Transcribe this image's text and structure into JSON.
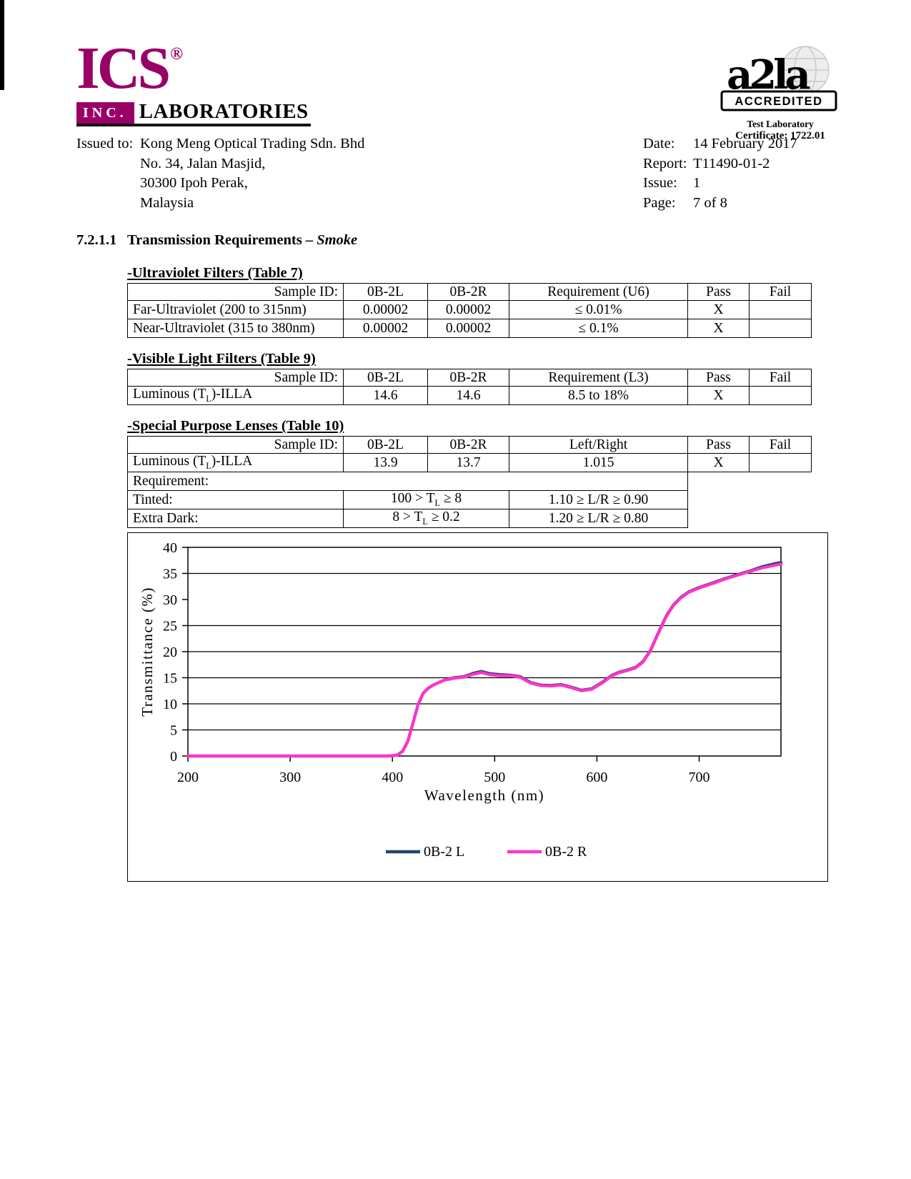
{
  "logo": {
    "brand": "ICS",
    "reg": "®",
    "inc": "INC.",
    "labs": "LABORATORIES",
    "color": "#990066"
  },
  "accreditation": {
    "mark": "a2la",
    "accredited": "ACCREDITED",
    "line1": "Test Laboratory",
    "line2": "Certificate: 1722.01"
  },
  "issued": {
    "label": "Issued to:",
    "lines": [
      "Kong Meng Optical Trading Sdn. Bhd",
      "No. 34, Jalan Masjid,",
      "30300 Ipoh Perak,",
      "Malaysia"
    ]
  },
  "meta": {
    "rows": [
      {
        "label": "Date:",
        "value": "14 February 2017"
      },
      {
        "label": "Report:",
        "value": "T11490-01-2"
      },
      {
        "label": "Issue:",
        "value": "1"
      },
      {
        "label": "Page:",
        "value": "7 of 8"
      }
    ]
  },
  "section": {
    "number": "7.2.1.1",
    "title": "Transmission Requirements – ",
    "emph": "Smoke"
  },
  "tables": {
    "uv": {
      "title": "-Ultraviolet Filters (Table 7)",
      "headers": [
        "Sample ID:",
        "0B-2L",
        "0B-2R",
        "Requirement (U6)",
        "Pass",
        "Fail"
      ],
      "rows": [
        {
          "label": "Far-Ultraviolet  (200 to 315nm)",
          "l": "0.00002",
          "r": "0.00002",
          "req": "≤ 0.01%",
          "pass": "X",
          "fail": ""
        },
        {
          "label": "Near-Ultraviolet (315 to 380nm)",
          "l": "0.00002",
          "r": "0.00002",
          "req": "≤ 0.1%",
          "pass": "X",
          "fail": ""
        }
      ]
    },
    "visible": {
      "title": "-Visible Light Filters (Table 9)",
      "headers": [
        "Sample ID:",
        "0B-2L",
        "0B-2R",
        "Requirement (L3)",
        "Pass",
        "Fail"
      ],
      "row": {
        "label_pre": "Luminous (T",
        "label_sub": "L",
        "label_post": ")-ILLA",
        "l": "14.6",
        "r": "14.6",
        "req": "8.5 to 18%",
        "pass": "X",
        "fail": ""
      }
    },
    "special": {
      "title": "-Special Purpose Lenses (Table 10)",
      "headers": [
        "Sample ID:",
        "0B-2L",
        "0B-2R",
        "Left/Right",
        "Pass",
        "Fail"
      ],
      "row": {
        "label_pre": "Luminous (T",
        "label_sub": "L",
        "label_post": ")-ILLA",
        "l": "13.9",
        "r": "13.7",
        "req": "1.015",
        "pass": "X",
        "fail": ""
      },
      "requirement_label": "Requirement:",
      "tinted": {
        "label": "Tinted:",
        "t_pre": "100 > T",
        "t_sub": "L",
        "t_post": " ≥ 8",
        "ratio": "1.10 ≥ L/R ≥ 0.90"
      },
      "extra": {
        "label": "Extra Dark:",
        "t_pre": "8 > T",
        "t_sub": "L",
        "t_post": " ≥ 0.2",
        "ratio": "1.20 ≥ L/R ≥ 0.80"
      }
    }
  },
  "chart_data": {
    "type": "line",
    "title": "",
    "xlabel": "Wavelength (nm)",
    "ylabel": "Transmittance (%)",
    "xlim": [
      200,
      780
    ],
    "ylim": [
      0,
      40
    ],
    "x_ticks": [
      200,
      300,
      400,
      500,
      600,
      700
    ],
    "y_ticks": [
      0,
      5,
      10,
      15,
      20,
      25,
      30,
      35,
      40
    ],
    "gridlines_y": [
      5,
      10,
      15,
      20,
      25,
      35
    ],
    "grid": true,
    "legend_position": "bottom",
    "series": [
      {
        "name": "0B-2 L",
        "color": "#23456E",
        "x": [
          200,
          250,
          300,
          350,
          380,
          395,
          400,
          405,
          410,
          415,
          420,
          425,
          430,
          435,
          440,
          450,
          460,
          470,
          480,
          487,
          495,
          505,
          515,
          525,
          535,
          545,
          555,
          565,
          575,
          585,
          595,
          605,
          615,
          622,
          630,
          638,
          645,
          652,
          660,
          668,
          675,
          682,
          690,
          700,
          712,
          725,
          738,
          750,
          762,
          775,
          780
        ],
        "y": [
          0,
          0,
          0,
          0,
          0,
          0,
          0.05,
          0.2,
          0.9,
          2.8,
          6.2,
          9.8,
          12.0,
          13.0,
          13.6,
          14.5,
          15.0,
          15.2,
          15.9,
          16.2,
          15.8,
          15.6,
          15.5,
          15.2,
          14.1,
          13.6,
          13.5,
          13.7,
          13.2,
          12.6,
          12.9,
          14.1,
          15.5,
          16.1,
          16.5,
          17.0,
          18.1,
          20.1,
          23.6,
          26.9,
          29.0,
          30.4,
          31.5,
          32.3,
          33.1,
          34.0,
          34.8,
          35.5,
          36.3,
          36.9,
          37.1
        ]
      },
      {
        "name": "0B-2 R",
        "color": "#FF33CC",
        "x": [
          200,
          250,
          300,
          350,
          380,
          395,
          400,
          405,
          410,
          415,
          420,
          425,
          430,
          435,
          440,
          450,
          460,
          470,
          480,
          487,
          495,
          505,
          515,
          525,
          535,
          545,
          555,
          565,
          575,
          585,
          595,
          605,
          615,
          622,
          630,
          638,
          645,
          652,
          660,
          668,
          675,
          682,
          690,
          700,
          712,
          725,
          738,
          750,
          762,
          775,
          780
        ],
        "y": [
          0,
          0,
          0,
          0,
          0,
          0,
          0.05,
          0.2,
          0.9,
          2.8,
          6.2,
          9.8,
          12.0,
          13.0,
          13.6,
          14.5,
          14.9,
          15.1,
          15.7,
          16.0,
          15.6,
          15.4,
          15.4,
          15.1,
          14.0,
          13.5,
          13.4,
          13.6,
          13.1,
          12.5,
          12.8,
          14.0,
          15.4,
          16.0,
          16.4,
          16.9,
          18.0,
          20.0,
          23.5,
          26.8,
          28.9,
          30.3,
          31.4,
          32.2,
          33.0,
          33.9,
          34.7,
          35.4,
          36.1,
          36.6,
          36.8
        ]
      }
    ]
  }
}
